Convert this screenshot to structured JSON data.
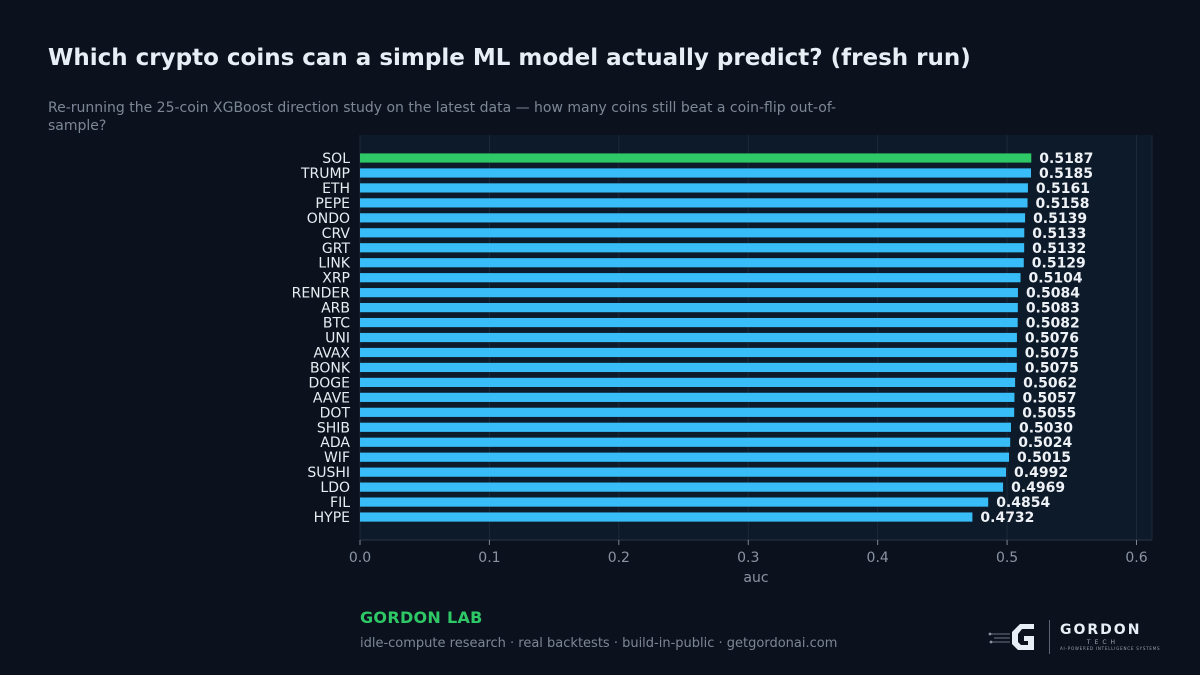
{
  "header": {
    "title": "Which crypto coins can a simple ML model actually predict? (fresh run)",
    "subtitle": "Re-running the 25-coin XGBoost direction study on the latest data — how many coins still beat a coin-flip out-of-sample?"
  },
  "chart_data": {
    "type": "bar",
    "orientation": "horizontal",
    "categories": [
      "SOL",
      "TRUMP",
      "ETH",
      "PEPE",
      "ONDO",
      "CRV",
      "GRT",
      "LINK",
      "XRP",
      "RENDER",
      "ARB",
      "BTC",
      "UNI",
      "AVAX",
      "BONK",
      "DOGE",
      "AAVE",
      "DOT",
      "SHIB",
      "ADA",
      "WIF",
      "SUSHI",
      "LDO",
      "FIL",
      "HYPE"
    ],
    "values": [
      0.5187,
      0.5185,
      0.5161,
      0.5158,
      0.5139,
      0.5133,
      0.5132,
      0.5129,
      0.5104,
      0.5084,
      0.5083,
      0.5082,
      0.5076,
      0.5075,
      0.5075,
      0.5062,
      0.5057,
      0.5055,
      0.503,
      0.5024,
      0.5015,
      0.4992,
      0.4969,
      0.4854,
      0.4732
    ],
    "value_labels": [
      "0.5187",
      "0.5185",
      "0.5161",
      "0.5158",
      "0.5139",
      "0.5133",
      "0.5132",
      "0.5129",
      "0.5104",
      "0.5084",
      "0.5083",
      "0.5082",
      "0.5076",
      "0.5075",
      "0.5075",
      "0.5062",
      "0.5057",
      "0.5055",
      "0.5030",
      "0.5024",
      "0.5015",
      "0.4992",
      "0.4969",
      "0.4854",
      "0.4732"
    ],
    "xlabel": "auc",
    "ylabel": "",
    "xlim": [
      0,
      0.6135
    ],
    "xticks": [
      0.0,
      0.1,
      0.2,
      0.3,
      0.4,
      0.5,
      0.6
    ],
    "xtick_labels": [
      "0.0",
      "0.1",
      "0.2",
      "0.3",
      "0.4",
      "0.5",
      "0.6"
    ],
    "grid": true,
    "colors": {
      "highlight": "#2ec866",
      "bar": "#38bdf8",
      "plot_bg": "#0d1a29",
      "grid": "#1b2939"
    },
    "highlight_index": 0
  },
  "footer": {
    "brand": "GORDON LAB",
    "tagline": "idle-compute research · real backtests · build-in-public · getgordonai.com",
    "logo_word": "GORDON",
    "logo_sub": "TECH",
    "logo_tagline": "AI-POWERED INTELLIGENCE SYSTEMS"
  }
}
